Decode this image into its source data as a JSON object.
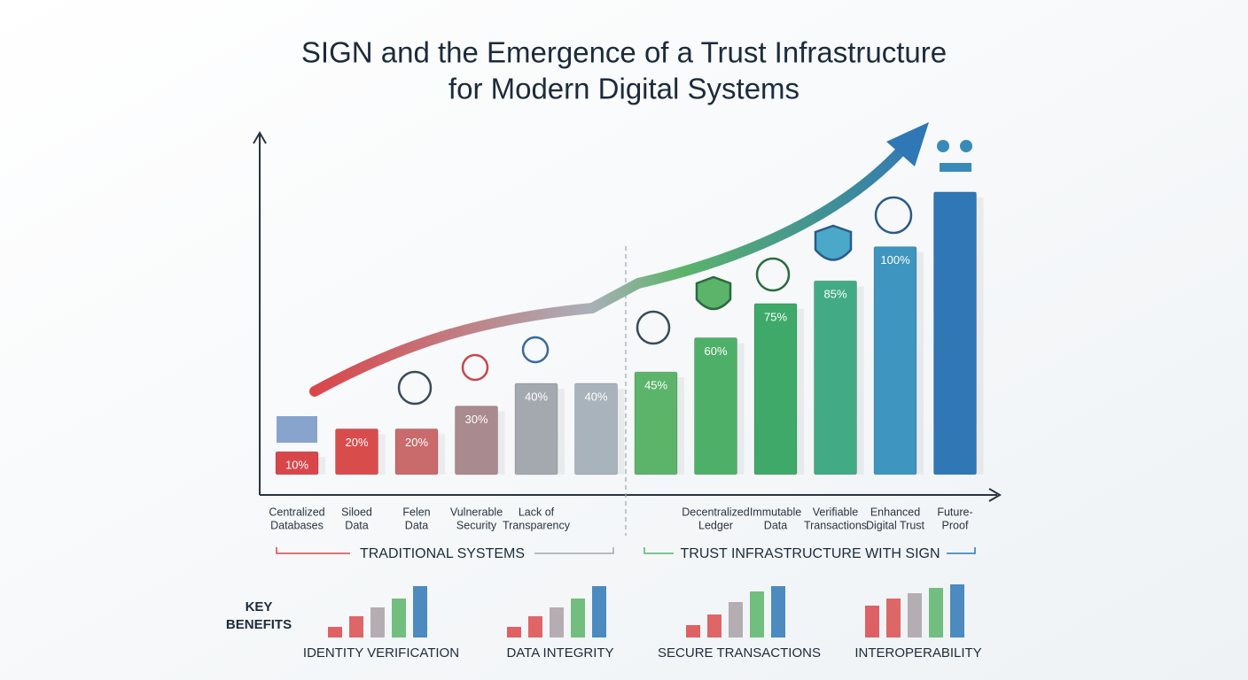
{
  "chart_data": {
    "type": "bar",
    "title": [
      "SIGN and the Emergence of a Trust Infrastructure",
      "for Modern Digital Systems"
    ],
    "categories": [
      [
        "Centralized",
        "Databases"
      ],
      [
        "Siloed",
        "Data"
      ],
      [
        "Felen",
        "Data"
      ],
      [
        "Vulnerable",
        "Security"
      ],
      [
        "Lack of",
        "Transparency"
      ],
      null,
      null,
      [
        "Decentralized",
        "Ledger"
      ],
      [
        "Immutable",
        "Data"
      ],
      [
        "Verifiable",
        "Transactions"
      ],
      [
        "Enhanced",
        "Digital Trust"
      ],
      [
        "Future-",
        "Proof"
      ]
    ],
    "values": [
      10,
      20,
      20,
      30,
      40,
      40,
      45,
      60,
      75,
      85,
      100,
      124
    ],
    "value_labels": [
      "10%",
      "20%",
      "20%",
      "30%",
      "40%",
      "40%",
      "45%",
      "60%",
      "75%",
      "85%",
      "100%",
      null
    ],
    "colors": [
      "#d9464a",
      "#d94c4c",
      "#c96a6c",
      "#a98a8e",
      "#a4a9b0",
      "#a9b3bc",
      "#5bb46a",
      "#4eb068",
      "#3fa96a",
      "#42ab85",
      "#3e95bf",
      "#2f77b5"
    ],
    "ylim": [
      -9,
      150
    ],
    "groups": [
      "TRADITIONAL SYSTEMS",
      "TRUST INFRASTRUCTURE WITH SIGN"
    ],
    "benefits_heading": [
      "KEY",
      "BENEFITS"
    ],
    "benefits": [
      "IDENTITY VERIFICATION",
      "DATA INTEGRITY",
      "SECURE TRANSACTIONS",
      "INTEROPERABILITY"
    ]
  }
}
